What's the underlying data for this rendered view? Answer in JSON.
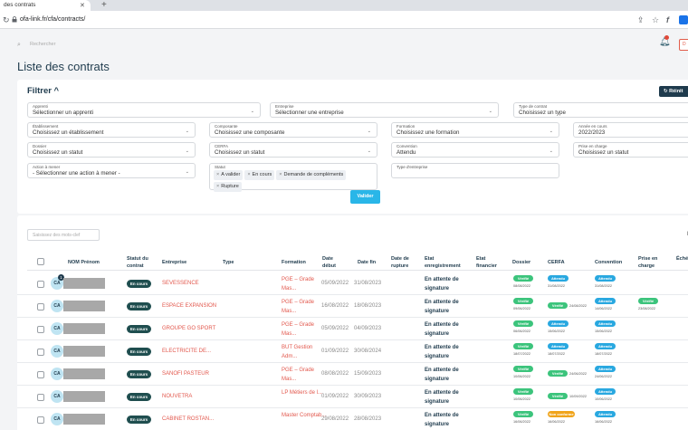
{
  "browser": {
    "tab_title": "des contrats",
    "new_tab": "+",
    "url": "ofa-link.fr/cfa/contracts/"
  },
  "header": {
    "search_placeholder": "Rechercher",
    "top_button": "D"
  },
  "page_title": "Liste des contrats",
  "filters": {
    "title": "Filtrer ^",
    "reset_label": "↻ Réinit",
    "fields": {
      "apprenti": {
        "label": "Apprenti",
        "value": "Sélectionner un apprenti"
      },
      "entreprise": {
        "label": "Entreprise",
        "value": "Sélectionner une entreprise"
      },
      "type_contrat": {
        "label": "Type de contrat",
        "value": "Choisissez un type"
      },
      "etablissement": {
        "label": "Établissement",
        "value": "Choisissez un établissement"
      },
      "composante": {
        "label": "Composante",
        "value": "Choisissez une composante"
      },
      "formation": {
        "label": "Formation",
        "value": "Choisissez une formation"
      },
      "annee": {
        "label": "Année en cours",
        "value": "2022/2023"
      },
      "dossier": {
        "label": "Dossier",
        "value": "Choisissez un statut"
      },
      "cerfa": {
        "label": "CERFA",
        "value": "Choisissez un statut"
      },
      "convention": {
        "label": "Convention",
        "value": "Attendu"
      },
      "prise_en_charge": {
        "label": "Prise en charge",
        "value": "Choisissez un statut"
      },
      "action": {
        "label": "Action à mener",
        "value": "- Sélectionner une action à mener -"
      },
      "statut": {
        "label": "Statut",
        "tags": [
          "A valider",
          "En cours",
          "Demande de compléments",
          "Rupture"
        ]
      },
      "type_entreprise": {
        "label": "Type d'entreprise",
        "value": ""
      }
    },
    "valider_label": "Valider"
  },
  "table": {
    "keyword_placeholder": "Saisissez des mots-clef",
    "page_indicator": "I",
    "columns": [
      "NOM Prénom",
      "Statut du contrat",
      "Entreprise",
      "Type",
      "Formation",
      "Date début",
      "Date fin",
      "Date de rupture",
      "Etat enregistrement",
      "Etat financier",
      "Dossier",
      "CERFA",
      "Convention",
      "Prise en charge",
      "Échéan factura"
    ],
    "rows": [
      {
        "initials": "CA",
        "badge": "1",
        "status": "En cours",
        "company": "SEVESSENCE",
        "formation": "PGE – Grade Mas...",
        "start": "05/09/2022",
        "end": "31/08/2023",
        "etat": "En attente de signature",
        "dossier": {
          "label": "Vérifié",
          "date": "08/08/2022"
        },
        "cerfa": {
          "label": "Attendu",
          "date": "31/08/2022",
          "color": "blue"
        },
        "cerfa_inline": null,
        "convention": {
          "label": "Attendu",
          "date": "31/08/2022"
        },
        "prise": null
      },
      {
        "initials": "CA",
        "badge": "",
        "status": "En cours",
        "company": "ESPACE EXPANSION",
        "formation": "PGE – Grade Mas...",
        "start": "16/08/2022",
        "end": "18/08/2023",
        "etat": "En attente de signature",
        "dossier": {
          "label": "Vérifié",
          "date": "09/06/2022"
        },
        "cerfa": null,
        "cerfa_inline": {
          "label": "Vérifié",
          "date": "24/08/2022",
          "color": "green"
        },
        "convention": {
          "label": "Attendu",
          "date": "14/06/2022"
        },
        "prise": {
          "label": "Vérifié",
          "date": "23/08/2022"
        }
      },
      {
        "initials": "CA",
        "badge": "",
        "status": "En cours",
        "company": "GROUPE GO SPORT",
        "formation": "PGE – Grade Mas...",
        "start": "05/09/2022",
        "end": "04/09/2023",
        "etat": "En attente de signature",
        "dossier": {
          "label": "Vérifié",
          "date": "06/06/2022"
        },
        "cerfa": {
          "label": "Attendu",
          "date": "15/06/2022",
          "color": "blue"
        },
        "cerfa_inline": null,
        "convention": {
          "label": "Attendu",
          "date": "15/06/2022"
        },
        "prise": null
      },
      {
        "initials": "CA",
        "badge": "",
        "status": "En cours",
        "company": "ELECTRICITE DE...",
        "formation": "BUT Gestion Adm...",
        "start": "01/09/2022",
        "end": "30/08/2024",
        "etat": "En attente de signature",
        "dossier": {
          "label": "Vérifié",
          "date": "18/07/2022"
        },
        "cerfa": {
          "label": "Attendu",
          "date": "18/07/2022",
          "color": "blue"
        },
        "cerfa_inline": null,
        "convention": {
          "label": "Attendu",
          "date": "18/07/2022"
        },
        "prise": null
      },
      {
        "initials": "CA",
        "badge": "",
        "status": "En cours",
        "company": "SANOFI PASTEUR",
        "formation": "PGE – Grade Mas...",
        "start": "08/08/2022",
        "end": "15/09/2023",
        "etat": "En attente de signature",
        "dossier": {
          "label": "Vérifié",
          "date": "10/06/2022"
        },
        "cerfa": null,
        "cerfa_inline": {
          "label": "Vérifié",
          "date": "24/06/2022",
          "color": "green"
        },
        "convention": {
          "label": "Attendu",
          "date": "24/06/2022"
        },
        "prise": null
      },
      {
        "initials": "CA",
        "badge": "",
        "status": "En cours",
        "company": "NOUVETRA",
        "formation": "LP Métiers de l...",
        "start": "01/09/2022",
        "end": "30/09/2023",
        "etat": "En attente de signature",
        "dossier": {
          "label": "Vérifié",
          "date": "10/06/2022"
        },
        "cerfa": null,
        "cerfa_inline": {
          "label": "Vérifié",
          "date": "10/09/2022",
          "color": "green"
        },
        "convention": {
          "label": "Attendu",
          "date": "10/06/2022"
        },
        "prise": null
      },
      {
        "initials": "CA",
        "badge": "",
        "status": "En cours",
        "company": "CABINET ROSTAN...",
        "formation": "Master Comptab...",
        "start": "29/08/2022",
        "end": "28/08/2023",
        "etat": "En attente de signature",
        "dossier": {
          "label": "Vérifié",
          "date": "16/06/2022"
        },
        "cerfa": {
          "label": "Non conforme",
          "date": "16/06/2022",
          "color": "orange"
        },
        "cerfa_inline": null,
        "convention": {
          "label": "Attendu",
          "date": "16/06/2022"
        },
        "prise": null
      }
    ]
  }
}
